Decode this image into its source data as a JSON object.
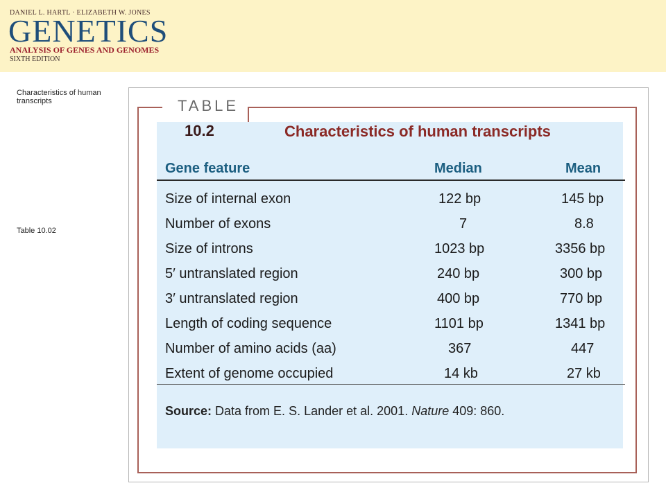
{
  "header": {
    "authors": "DANIEL L. HARTL · ELIZABETH W. JONES",
    "brand": "GENETICS",
    "subtitle": "ANALYSIS OF GENES AND GENOMES",
    "edition": "SIXTH EDITION"
  },
  "side_labels": {
    "description": "Characteristics of human transcripts",
    "table_ref": "Table 10.02"
  },
  "table": {
    "label": "TABLE",
    "number": "10.2",
    "title": "Characteristics of human transcripts",
    "columns": [
      "Gene feature",
      "Median",
      "Mean"
    ],
    "rows": [
      {
        "feature": "Size of internal exon",
        "median": "122 bp",
        "mean": "145 bp"
      },
      {
        "feature": "Number of exons",
        "median": "7",
        "mean": "8.8"
      },
      {
        "feature": "Size of introns",
        "median": "1023 bp",
        "mean": "3356 bp"
      },
      {
        "feature": "5′ untranslated region",
        "median": "240 bp",
        "mean": "300 bp"
      },
      {
        "feature": "3′ untranslated region",
        "median": "400 bp",
        "mean": "770 bp"
      },
      {
        "feature": "Length of coding sequence",
        "median": "1101 bp",
        "mean": "1341 bp"
      },
      {
        "feature": "Number of amino acids (aa)",
        "median": "367",
        "mean": "447"
      },
      {
        "feature": "Extent of genome occupied",
        "median": "14 kb",
        "mean": "27 kb"
      }
    ],
    "source": {
      "label": "Source:",
      "text_before": " Data from E. S. Lander et al. 2001. ",
      "journal": "Nature",
      "text_after": " 409: 860."
    }
  },
  "colors": {
    "banner": "#fdf3c6",
    "brand": "#1f4e7a",
    "title_red": "#8b2a26",
    "header_blue": "#1b5e80",
    "panel": "#dfeffa"
  }
}
